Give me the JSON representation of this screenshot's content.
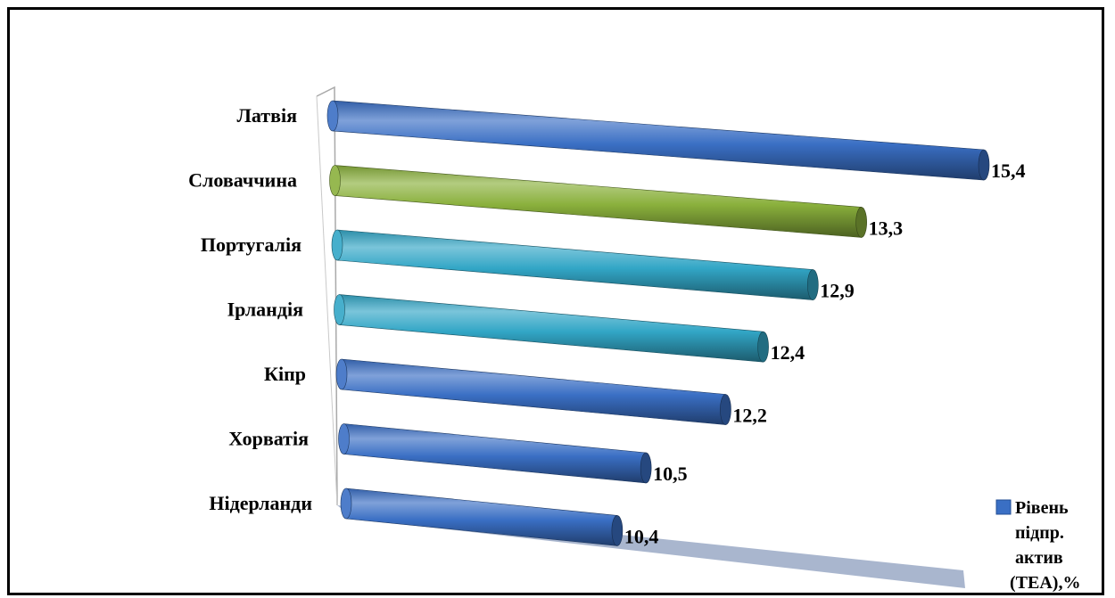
{
  "chart_data": {
    "type": "bar",
    "orientation": "horizontal",
    "categories": [
      "Латвія",
      "Словаччина",
      "Португалія",
      "Ірландія",
      "Кіпр",
      "Хорватія",
      "Нідерланди"
    ],
    "series": [
      {
        "name": "Рівень підпр. актив (TEA),%",
        "values": [
          15.4,
          13.3,
          12.9,
          12.4,
          12.2,
          10.5,
          10.4
        ]
      }
    ],
    "value_labels": [
      "15,4",
      "13,3",
      "12,9",
      "12,4",
      "12,2",
      "10,5",
      "10,4"
    ],
    "bar_colors": [
      "#3a6fc4",
      "#8ab03c",
      "#32a6c6",
      "#32a6c6",
      "#3a6fc4",
      "#3a6fc4",
      "#3a6fc4"
    ],
    "legend": {
      "position": "bottom-right",
      "lines": [
        "Рівень",
        "підпр.",
        "актив",
        "(TEA),%"
      ],
      "color": "#3a6fc4"
    },
    "title": "",
    "xlabel": "",
    "ylabel": "",
    "xlim": [
      0,
      15.4
    ],
    "grid": false,
    "style": "3d-cylinder"
  }
}
